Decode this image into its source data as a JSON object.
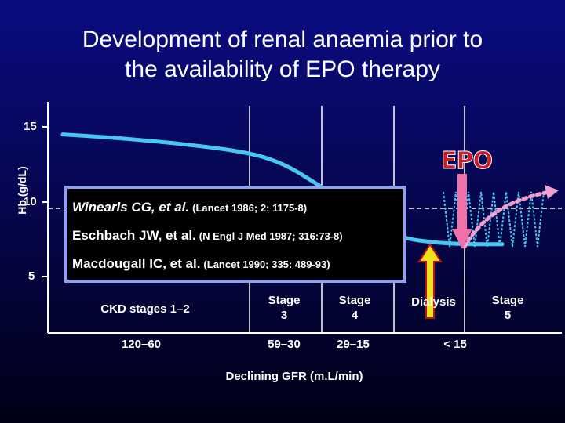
{
  "title_line1": "Development of renal anaemia prior to",
  "title_line2": "the availability of EPO therapy",
  "chart_data": {
    "type": "line",
    "ylabel": "Hb (g/dL)",
    "xlabel": "Declining GFR (m.L/min)",
    "y_ticks": [
      "15",
      "10",
      "5"
    ],
    "ylim": [
      5,
      15
    ],
    "series": [
      {
        "x": [
          100,
          90,
          75,
          60,
          45,
          32,
          22,
          17,
          14,
          11,
          8,
          5
        ],
        "values": [
          14.5,
          14.3,
          13.9,
          13.3,
          12.5,
          11.2,
          9.4,
          8.1,
          7.6,
          7.3,
          7.2,
          7.2
        ]
      }
    ],
    "reference_level": 10,
    "stage_boundaries": [
      60,
      30,
      15,
      8
    ]
  },
  "stages": [
    {
      "label": "CKD stages  1–2",
      "gfr": "120–60"
    },
    {
      "label_line1": "Stage",
      "label_line2": "3",
      "gfr": "59–30"
    },
    {
      "label_line1": "Stage",
      "label_line2": "4",
      "gfr": "29–15"
    },
    {
      "label": "Dialysis",
      "gfr": "< 15"
    },
    {
      "label_line1": "Stage",
      "label_line2": "5"
    }
  ],
  "epo_label": "EPO",
  "references": [
    {
      "author": "Winearls CG, et al.",
      "journal": "(Lancet  1986; 2: 1175-8)"
    },
    {
      "author": "Eschbach JW, et al.",
      "journal": "(N Engl J Med 1987; 316:73-8)"
    },
    {
      "author": "Macdougall IC, et al.",
      "journal": "(Lancet  1990; 335: 489-93)"
    }
  ],
  "colors": {
    "curve": "#48c8f0",
    "epo_arrow": "#f070a8",
    "epo_curve": "#f0a0d0",
    "dialysis_arrow": "#f0e020",
    "dialysis_arrow_outline": "#c01010",
    "sawtooth": "#48c8f0"
  }
}
